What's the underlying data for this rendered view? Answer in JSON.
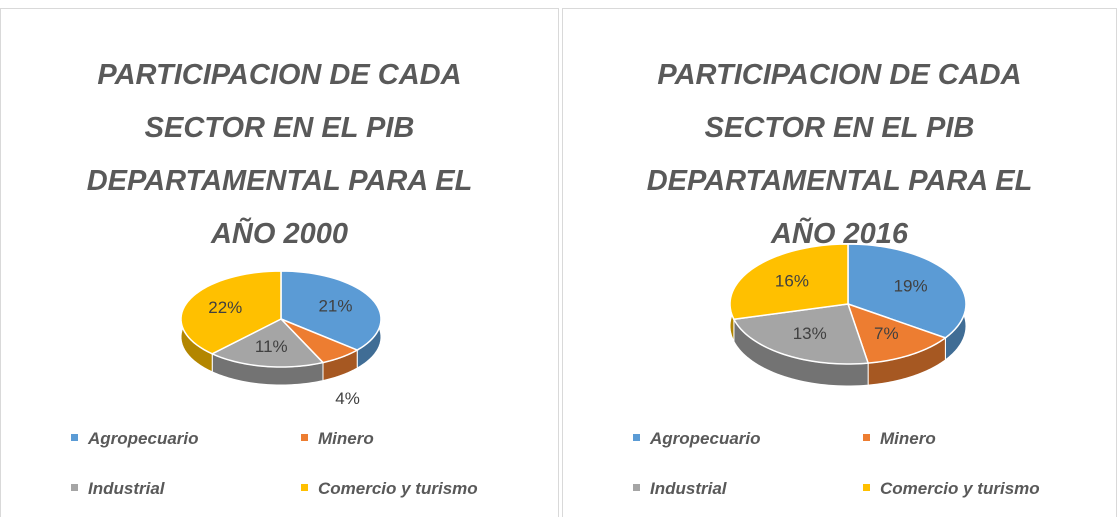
{
  "chart_data": [
    {
      "type": "pie",
      "title": "PARTICIPACION DE CADA SECTOR EN EL PIB DEPARTAMENTAL PARA EL AÑO 2000",
      "categories": [
        "Agropecuario",
        "Minero",
        "Industrial",
        "Comercio y turismo"
      ],
      "values": [
        21,
        4,
        11,
        22
      ],
      "value_labels": [
        "21%",
        "4%",
        "11%",
        "22%"
      ],
      "colors": [
        "#5b9bd5",
        "#ed7d31",
        "#a5a5a5",
        "#ffc000"
      ],
      "legend": "bottom"
    },
    {
      "type": "pie",
      "title": "PARTICIPACION DE CADA SECTOR EN EL PIB DEPARTAMENTAL PARA EL AÑO 2016",
      "categories": [
        "Agropecuario",
        "Minero",
        "Industrial",
        "Comercio y turismo"
      ],
      "values": [
        19,
        7,
        13,
        16
      ],
      "value_labels": [
        "19%",
        "7%",
        "13%",
        "16%"
      ],
      "colors": [
        "#5b9bd5",
        "#ed7d31",
        "#a5a5a5",
        "#ffc000"
      ],
      "legend": "bottom"
    }
  ]
}
